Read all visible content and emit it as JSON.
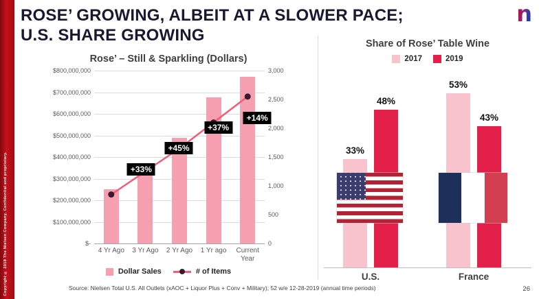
{
  "header": {
    "title_line1": "ROSE’ GROWING, ALBEIT AT A SLOWER PACE;",
    "title_line2": "U.S. SHARE GROWING",
    "logo_letter": "n"
  },
  "footer": {
    "source": "Source:  Nielsen Total U.S. All Outlets (xAOC + Liquor Plus + Conv + Military); 52 w/e  12-28-2019 (annual time periods)",
    "page_number": "26",
    "copyright": "Copyright © 2019 The Nielsen Company. Confidential and proprietary."
  },
  "colors": {
    "bar_pink": "#F59FB0",
    "line_red": "#F25C74",
    "marker_dark": "#3A1A2F",
    "pink_2017": "#F9C3CD",
    "red_2019": "#E2204A",
    "annotation_bg": "#000000",
    "brand_red": "#C8101B"
  },
  "icons": {
    "logo": "nielsen-n-logo",
    "us_flag": "us-flag",
    "france_flag": "france-flag"
  },
  "chart_data": [
    {
      "type": "bar",
      "subtype": "combo-bar-line",
      "title": "Rose’ – Still & Sparkling (Dollars)",
      "categories": [
        "4 Yr Ago",
        "3 Yr Ago",
        "2 Yr Ago",
        "1 Yr ago",
        "Current Year"
      ],
      "series": [
        {
          "name": "Dollar Sales",
          "chart": "bar",
          "axis": "left",
          "values": [
            250000000,
            335000000,
            490000000,
            675000000,
            770000000
          ]
        },
        {
          "name": "# of Items",
          "chart": "line",
          "axis": "right",
          "values": [
            850,
            1250,
            1650,
            2100,
            2550
          ]
        }
      ],
      "annotations": [
        {
          "index": 1,
          "label": "+33%"
        },
        {
          "index": 2,
          "label": "+45%"
        },
        {
          "index": 3,
          "label": "+37%"
        },
        {
          "index": 4,
          "label": "+14%"
        }
      ],
      "left_axis": {
        "min": 0,
        "max": 800000000,
        "tick_labels": [
          "$-",
          "$100,000,000",
          "$200,000,000",
          "$300,000,000",
          "$400,000,000",
          "$500,000,000",
          "$600,000,000",
          "$700,000,000",
          "$800,000,000"
        ]
      },
      "right_axis": {
        "min": 0,
        "max": 3000,
        "tick_labels": [
          "0",
          "500",
          "1,000",
          "1,500",
          "2,000",
          "2,500",
          "3,000"
        ]
      },
      "grid": true,
      "legend_position": "bottom"
    },
    {
      "type": "bar",
      "subtype": "grouped",
      "title": "Share of Rose’ Table Wine",
      "categories": [
        "U.S.",
        "France"
      ],
      "series": [
        {
          "name": "2017",
          "values": [
            33,
            53
          ],
          "labels": [
            "33%",
            "53%"
          ]
        },
        {
          "name": "2019",
          "values": [
            48,
            43
          ],
          "labels": [
            "48%",
            "43%"
          ]
        }
      ],
      "ylim": [
        0,
        60
      ],
      "grid": false,
      "legend_position": "top"
    }
  ]
}
